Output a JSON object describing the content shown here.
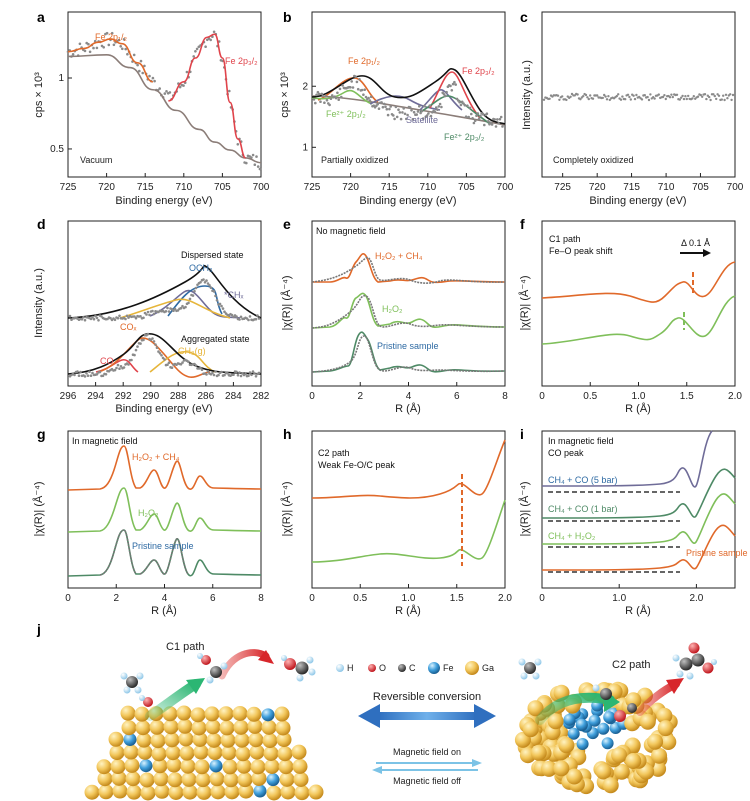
{
  "colors": {
    "orange": "#e0692a",
    "red": "#e0444b",
    "green": "#7fbf5a",
    "darkgreen": "#4e8a66",
    "gray": "#7c7c7c",
    "purple": "#6f6c98",
    "blue": "#2e6aa3",
    "yellow": "#e6b53a",
    "black": "#111111",
    "bgline": "#8b7d78"
  },
  "chart_data": [
    {
      "id": "a",
      "panel_label": "a",
      "type": "scatter",
      "xlabel": "Binding energy (eV)",
      "ylabel": "cps × 10³",
      "xlim": [
        725,
        700
      ],
      "ylim": [
        0.38,
        1.42
      ],
      "xticks": [
        "725",
        "720",
        "715",
        "710",
        "705",
        "700"
      ],
      "yticks": [
        "0.5",
        "1"
      ],
      "annotations": [
        "Fe 2p₁/₂",
        "Fe 2p₃/₂",
        "Vacuum"
      ],
      "series": [
        {
          "name": "Fe 2p₁/₂",
          "x": [
            725,
            723,
            721,
            719.5,
            718,
            716,
            714
          ],
          "y": [
            1.17,
            1.19,
            1.23,
            1.25,
            1.22,
            1.1,
            0.98
          ]
        },
        {
          "name": "Fe 2p₃/₂",
          "x": [
            712,
            710,
            708.5,
            707,
            706,
            705,
            704,
            703,
            702
          ],
          "y": [
            0.86,
            0.98,
            1.13,
            1.26,
            1.28,
            1.13,
            0.85,
            0.62,
            0.5
          ]
        },
        {
          "name": "Background",
          "x": [
            725,
            720,
            717,
            714,
            711,
            708,
            706,
            704,
            702,
            700
          ],
          "y": [
            1.14,
            1.15,
            1.07,
            0.93,
            0.8,
            0.68,
            0.6,
            0.55,
            0.5,
            0.47
          ]
        }
      ]
    },
    {
      "id": "b",
      "panel_label": "b",
      "type": "scatter",
      "xlabel": "Binding energy (eV)",
      "ylabel": "cps × 10³",
      "xlim": [
        725,
        700
      ],
      "ylim": [
        0.6,
        2.75
      ],
      "xticks": [
        "725",
        "720",
        "715",
        "710",
        "705",
        "700"
      ],
      "yticks": [
        "1",
        "2"
      ],
      "annotations": [
        "Fe 2p₁/₂",
        "Fe 2p₃/₂",
        "Fe²⁺ 2p₁/₂",
        "Satellite",
        "Fe²⁺ 2p₃/₂",
        "Partially oxidized"
      ],
      "series": [
        {
          "name": "Envelope",
          "x": [
            725,
            722,
            720,
            718,
            716,
            714,
            712,
            710,
            708,
            707,
            706,
            704,
            702,
            700
          ],
          "y": [
            1.8,
            1.95,
            2.15,
            2.05,
            1.8,
            1.82,
            1.95,
            2.2,
            2.3,
            2.15,
            1.9,
            1.6,
            1.55,
            1.5
          ]
        },
        {
          "name": "Fe 2p₁/₂",
          "x": [
            724,
            722,
            720,
            718,
            716
          ],
          "y": [
            1.75,
            1.92,
            2.1,
            1.95,
            1.7
          ]
        },
        {
          "name": "Fe 2p₃/₂",
          "x": [
            710,
            708,
            707,
            705,
            703
          ],
          "y": [
            1.8,
            2.15,
            2.25,
            1.9,
            1.5
          ]
        }
      ]
    },
    {
      "id": "c",
      "panel_label": "c",
      "type": "scatter",
      "xlabel": "Binding energy (eV)",
      "ylabel": "Intensity (a.u.)",
      "xlim": [
        728,
        700
      ],
      "xticks": [
        "725",
        "720",
        "715",
        "710",
        "705",
        "700"
      ],
      "annotations": [
        "Completely oxidized"
      ],
      "series": [
        {
          "name": "Flat",
          "x": [
            728,
            700
          ],
          "y": [
            1,
            1
          ]
        }
      ]
    },
    {
      "id": "d",
      "panel_label": "d",
      "type": "scatter",
      "xlabel": "Binding energy (eV)",
      "ylabel": "Intensity (a.u.)",
      "xlim": [
        296,
        282
      ],
      "xticks": [
        "296",
        "294",
        "292",
        "290",
        "288",
        "286",
        "284",
        "282"
      ],
      "annotations": [
        "Dispersed state",
        "OCH₃",
        "*CHₓ",
        "Aggregated state",
        "COₓ",
        "CH₃(g)",
        "CO"
      ],
      "series": [
        {
          "name": "Dispersed envelope",
          "x": [
            296,
            292,
            290,
            288,
            287,
            286,
            285,
            284,
            282
          ],
          "y": [
            0.55,
            0.57,
            0.6,
            0.72,
            0.85,
            0.92,
            0.78,
            0.6,
            0.55
          ]
        },
        {
          "name": "Aggregated envelope",
          "x": [
            296,
            294,
            292,
            291,
            290,
            289,
            288,
            286,
            284,
            282
          ],
          "y": [
            0.1,
            0.11,
            0.14,
            0.2,
            0.32,
            0.31,
            0.2,
            0.13,
            0.12,
            0.1
          ]
        }
      ]
    },
    {
      "id": "e",
      "panel_label": "e",
      "type": "line",
      "xlabel": "R (Å)",
      "ylabel": "|χ(R)| (Å⁻⁴)",
      "xlim": [
        0,
        8
      ],
      "xticks": [
        "0",
        "2",
        "4",
        "6",
        "8"
      ],
      "annotations": [
        "No magnetic field",
        "H₂O₂ + CH₄",
        "H₂O₂",
        "Pristine sample"
      ],
      "series": [
        {
          "name": "H₂O₂ + CH₄"
        },
        {
          "name": "H₂O₂"
        },
        {
          "name": "Pristine sample"
        }
      ]
    },
    {
      "id": "f",
      "panel_label": "f",
      "type": "line",
      "xlabel": "R (Å)",
      "ylabel": "|χ(R)| (Å⁻⁴)",
      "xlim": [
        0,
        2
      ],
      "xticks": [
        "0",
        "0.5",
        "1.0",
        "1.5",
        "2.0"
      ],
      "annotations": [
        "C1 path",
        "Fe–O peak shift",
        "Δ 0.1 Å"
      ],
      "series": [
        {
          "name": "upper"
        },
        {
          "name": "lower"
        }
      ]
    },
    {
      "id": "g",
      "panel_label": "g",
      "type": "line",
      "xlabel": "R (Å)",
      "ylabel": "|χ(R)| (Å⁻⁴)",
      "xlim": [
        0,
        8
      ],
      "xticks": [
        "0",
        "2",
        "4",
        "6",
        "8"
      ],
      "annotations": [
        "In magnetic field",
        "H₂O₂ + CH₄",
        "H₂O₂",
        "Pristine sample"
      ],
      "series": [
        {
          "name": "H₂O₂ + CH₄"
        },
        {
          "name": "H₂O₂"
        },
        {
          "name": "Pristine sample"
        }
      ]
    },
    {
      "id": "h",
      "panel_label": "h",
      "type": "line",
      "xlabel": "R (Å)",
      "ylabel": "|χ(R)| (Å⁻⁴)",
      "xlim": [
        0,
        2
      ],
      "xticks": [
        "0",
        "0.5",
        "1.0",
        "1.5",
        "2.0"
      ],
      "annotations": [
        "C2 path",
        "Weak Fe-O/C peak"
      ],
      "series": [
        {
          "name": "upper"
        },
        {
          "name": "lower"
        }
      ]
    },
    {
      "id": "i",
      "panel_label": "i",
      "type": "line",
      "xlabel": "R (Å)",
      "ylabel": "|χ(R)| (Å⁻⁴)",
      "xlim": [
        0,
        2.5
      ],
      "xticks": [
        "0",
        "1.0",
        "2.0"
      ],
      "annotations": [
        "In magnetic field",
        "CO peak",
        "CH₄ + CO (5 bar)",
        "CH₄ + CO (1 bar)",
        "CH₄ + H₂O₂",
        "Pristine sample"
      ],
      "series": [
        {
          "name": "CH₄ + CO (5 bar)"
        },
        {
          "name": "CH₄ + CO (1 bar)"
        },
        {
          "name": "CH₄ + H₂O₂"
        },
        {
          "name": "Pristine sample"
        }
      ]
    }
  ],
  "panel_j": {
    "label": "j",
    "c1_path": "C1 path",
    "c2_path": "C2 path",
    "legend": [
      "H",
      "O",
      "C",
      "Fe",
      "Ga"
    ],
    "reversible": "Reversible conversion",
    "field_on": "Magnetic field on",
    "field_off": "Magnetic field off"
  }
}
